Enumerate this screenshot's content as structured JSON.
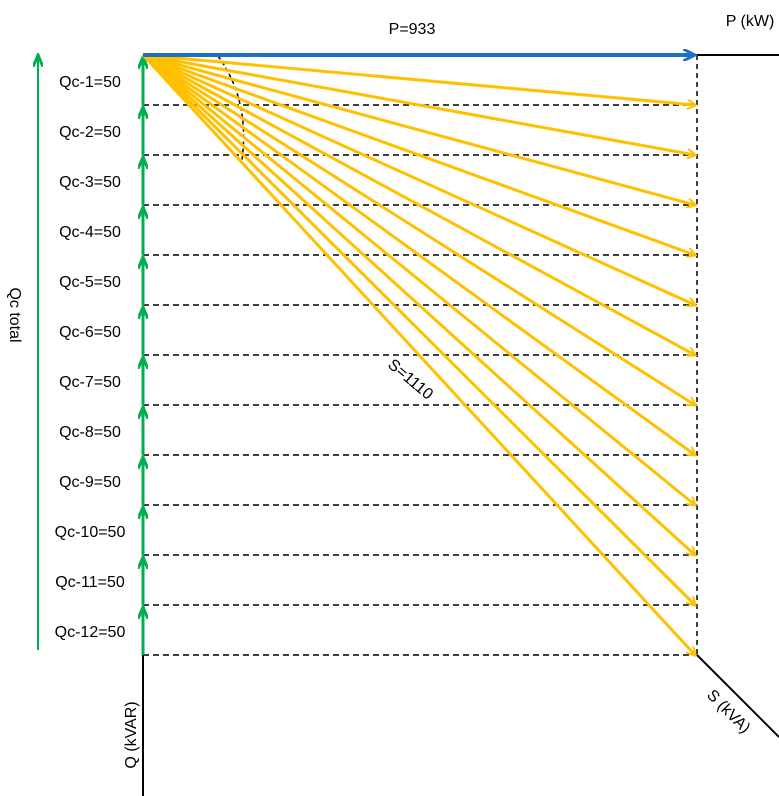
{
  "diagram": {
    "p_label": "P=933",
    "p_axis": "P (kW)",
    "s_label": "S=1110",
    "s_axis": "S (kVA)",
    "q_axis": "Q (kVAR)",
    "qc_total": "Qc total",
    "steps": [
      "Qc-1=50",
      "Qc-2=50",
      "Qc-3=50",
      "Qc-4=50",
      "Qc-5=50",
      "Qc-6=50",
      "Qc-7=50",
      "Qc-8=50",
      "Qc-9=50",
      "Qc-10=50",
      "Qc-11=50",
      "Qc-12=50"
    ]
  }
}
